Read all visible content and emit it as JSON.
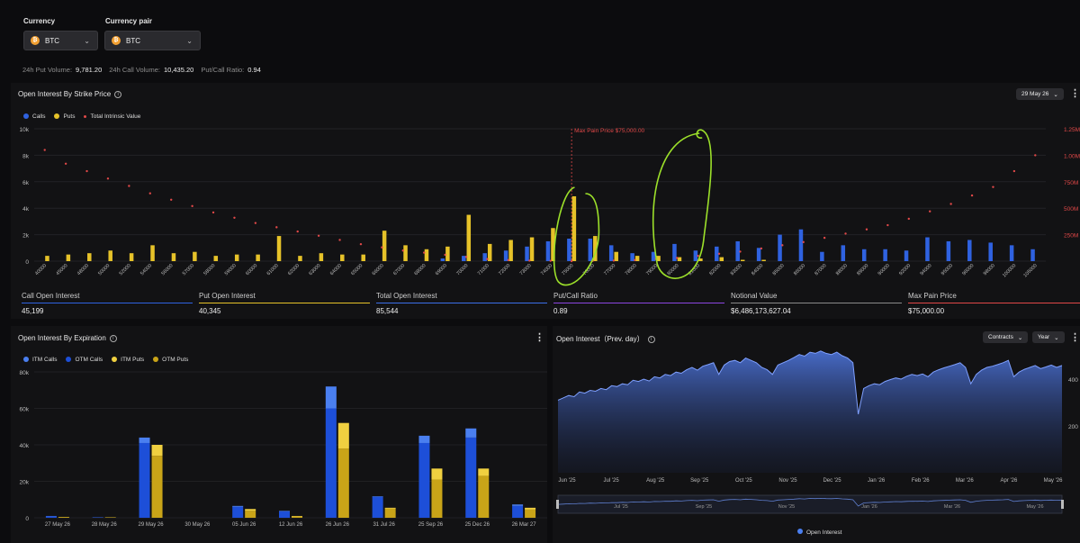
{
  "controls": {
    "currency_label": "Currency",
    "currency_value": "BTC",
    "pair_label": "Currency pair",
    "pair_value": "BTC",
    "coin_glyph": "₿"
  },
  "summary": {
    "put_volume_label": "24h Put Volume:",
    "put_volume_value": "9,781.20",
    "call_volume_label": "24h Call Volume:",
    "call_volume_value": "10,435.20",
    "ratio_label": "Put/Call Ratio:",
    "ratio_value": "0.94"
  },
  "strike_panel": {
    "title": "Open Interest By Strike Price",
    "expiry_select": "29 May 26",
    "legend": [
      "Calls",
      "Puts",
      "Total Intrinsic Value"
    ],
    "max_pain_label": "Max Pain Price $75,000.00",
    "y_left_ticks": [
      "10k",
      "8k",
      "6k",
      "4k",
      "2k",
      "0"
    ],
    "y_right_ticks": [
      "1.25M",
      "1.00M",
      "750M",
      "500M",
      "250M"
    ],
    "stats": [
      {
        "title": "Call Open Interest",
        "value": "45,199"
      },
      {
        "title": "Put Open Interest",
        "value": "40,345"
      },
      {
        "title": "Total Open Interest",
        "value": "85,544"
      },
      {
        "title": "Put/Call Ratio",
        "value": "0.89"
      },
      {
        "title": "Notional Value",
        "value": "$6,486,173,627.04"
      },
      {
        "title": "Max Pain Price",
        "value": "$75,000.00"
      }
    ]
  },
  "expiry_panel": {
    "title": "Open Interest By Expiration",
    "legend": [
      "ITM Calls",
      "OTM Calls",
      "ITM Puts",
      "OTM Puts"
    ],
    "y_ticks": [
      "80k",
      "60k",
      "40k",
      "20k",
      "0"
    ]
  },
  "prev_panel": {
    "title": "Open Interest（Prev. day）",
    "contracts_select": "Contracts",
    "period_select": "Year",
    "legend": "Open Interest",
    "y_ticks": [
      "400",
      "200"
    ],
    "x_ticks": [
      "Jun '25",
      "Jul '25",
      "Aug '25",
      "Sep '25",
      "Oct '25",
      "Nov '25",
      "Dec '25",
      "Jan '26",
      "Feb '26",
      "Mar '26",
      "Apr '26",
      "May '26"
    ],
    "nav_ticks": [
      "Jul '25",
      "Sep '25",
      "Nov '25",
      "Jan '26",
      "Mar '26",
      "May '26"
    ]
  },
  "colors": {
    "calls": "#2f62e0",
    "puts": "#e6c229",
    "intrinsic": "#e04848",
    "itm_calls": "#4a7ff0",
    "otm_calls": "#1d4fd8",
    "itm_puts": "#f0d040",
    "otm_puts": "#c9a418",
    "annotation": "#9ce02a"
  },
  "chart_data": [
    {
      "type": "bar",
      "title": "Open Interest By Strike Price",
      "categories": [
        "40000",
        "45000",
        "48000",
        "50000",
        "52000",
        "54000",
        "56000",
        "57000",
        "58000",
        "59000",
        "60000",
        "61000",
        "62000",
        "63000",
        "64000",
        "65000",
        "66000",
        "67000",
        "68000",
        "69000",
        "70000",
        "71000",
        "72000",
        "73000",
        "74000",
        "75000",
        "76000",
        "77000",
        "78000",
        "79000",
        "80000",
        "81000",
        "82000",
        "83000",
        "84000",
        "85000",
        "86000",
        "87000",
        "88000",
        "89000",
        "90000",
        "92000",
        "94000",
        "95000",
        "96000",
        "98000",
        "100000",
        "105000"
      ],
      "series": [
        {
          "name": "Calls",
          "values": [
            0,
            0,
            0,
            0,
            0,
            0,
            0,
            0,
            0,
            0,
            0,
            0,
            0,
            0,
            0,
            0,
            0,
            0,
            0,
            200,
            400,
            600,
            800,
            1100,
            1500,
            1700,
            1700,
            1200,
            600,
            700,
            1300,
            800,
            1100,
            1500,
            1000,
            2000,
            2400,
            700,
            1200,
            900,
            900,
            800,
            1800,
            1500,
            1600,
            1400,
            1200,
            900
          ]
        },
        {
          "name": "Puts",
          "values": [
            400,
            500,
            600,
            800,
            600,
            1200,
            600,
            700,
            400,
            500,
            500,
            1900,
            400,
            600,
            500,
            500,
            2300,
            1200,
            900,
            1100,
            3500,
            1300,
            1600,
            1800,
            2500,
            4900,
            1900,
            700,
            400,
            400,
            300,
            200,
            300,
            100,
            100,
            0,
            0,
            0,
            0,
            0,
            0,
            0,
            0,
            0,
            0,
            0,
            0,
            0
          ]
        },
        {
          "name": "Total Intrinsic Value",
          "values": [
            1050000.0,
            920000.0,
            850000.0,
            780000.0,
            710000.0,
            640000.0,
            580000.0,
            520000.0,
            460000.0,
            410000.0,
            360000.0,
            320000.0,
            280000.0,
            240000.0,
            200000.0,
            160000.0,
            130000.0,
            100000.0,
            80000.0,
            60000.0,
            40000.0,
            20000.0,
            10000.0,
            5000.0,
            3000.0,
            0,
            2000.0,
            5000.0,
            10000.0,
            20000.0,
            30000.0,
            50000.0,
            70000.0,
            90000.0,
            120000.0,
            150000.0,
            180000.0,
            220000.0,
            260000.0,
            300000.0,
            340000.0,
            400000.0,
            470000.0,
            540000.0,
            620000.0,
            700000.0,
            850000.0,
            1000000.0
          ]
        }
      ],
      "ylim": [
        0,
        10000
      ],
      "y2lim": [
        0,
        1250000000
      ]
    },
    {
      "type": "bar",
      "title": "Open Interest By Expiration",
      "categories": [
        "27 May 26",
        "28 May 26",
        "29 May 26",
        "30 May 26",
        "05 Jun 26",
        "12 Jun 26",
        "26 Jun 26",
        "31 Jul 26",
        "25 Sep 26",
        "25 Dec 26",
        "26 Mar 27"
      ],
      "series": [
        {
          "name": "ITM Calls",
          "values": [
            200,
            100,
            3000,
            0,
            500,
            300,
            12000,
            300,
            4000,
            5000,
            800
          ]
        },
        {
          "name": "OTM Calls",
          "values": [
            800,
            200,
            41000,
            0,
            6000,
            3500,
            60000,
            11500,
            41000,
            44000,
            6500
          ]
        },
        {
          "name": "ITM Puts",
          "values": [
            100,
            100,
            6000,
            0,
            1000,
            300,
            14000,
            500,
            6000,
            4000,
            1000
          ]
        },
        {
          "name": "OTM Puts",
          "values": [
            400,
            200,
            34000,
            0,
            3800,
            700,
            38000,
            5000,
            21000,
            23000,
            4500
          ]
        }
      ],
      "ylim": [
        0,
        80000
      ]
    },
    {
      "type": "area",
      "title": "Open Interest（Prev. day）",
      "series": [
        {
          "name": "Open Interest",
          "values": [
            310,
            320,
            330,
            325,
            345,
            340,
            352,
            348,
            360,
            355,
            372,
            368,
            380,
            376,
            395,
            390,
            400,
            392,
            410,
            405,
            420,
            415,
            430,
            425,
            440,
            450,
            438,
            455,
            462,
            470,
            420,
            460,
            475,
            480,
            470,
            490,
            480,
            470,
            450,
            440,
            420,
            460,
            470,
            480,
            492,
            505,
            498,
            515,
            510,
            520,
            510,
            505,
            515,
            500,
            490,
            470,
            250,
            360,
            372,
            380,
            376,
            390,
            398,
            405,
            400,
            412,
            420,
            415,
            422,
            410,
            430,
            440,
            448,
            455,
            462,
            470,
            450,
            380,
            420,
            438,
            450,
            455,
            462,
            470,
            480,
            410,
            430,
            442,
            450,
            458,
            445,
            452,
            460,
            450,
            458
          ]
        }
      ],
      "ylim": [
        0,
        500
      ]
    }
  ]
}
